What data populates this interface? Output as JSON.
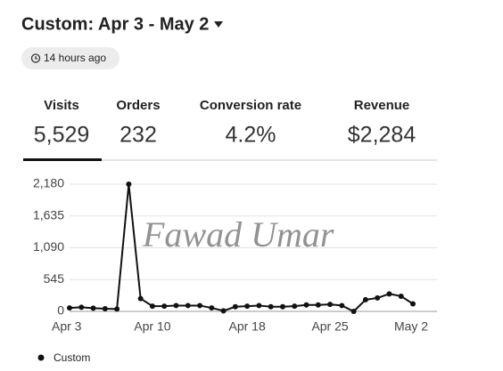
{
  "header": {
    "title": "Custom: Apr 3 - May 2",
    "updated": "14 hours ago"
  },
  "stats": [
    {
      "label": "Visits",
      "value": "5,529"
    },
    {
      "label": "Orders",
      "value": "232"
    },
    {
      "label": "Conversion rate",
      "value": "4.2%"
    },
    {
      "label": "Revenue",
      "value": "$2,284"
    }
  ],
  "watermark": "Fawad Umar",
  "chart_data": {
    "type": "line",
    "categories": [
      "Apr 3",
      null,
      null,
      null,
      null,
      null,
      null,
      "Apr 10",
      null,
      null,
      null,
      null,
      null,
      null,
      null,
      "Apr 18",
      null,
      null,
      null,
      null,
      null,
      null,
      "Apr 25",
      null,
      null,
      null,
      null,
      null,
      null,
      "May 2"
    ],
    "series": [
      {
        "name": "Custom",
        "color": "#111111",
        "values": [
          60,
          70,
          55,
          45,
          40,
          2180,
          220,
          90,
          90,
          100,
          100,
          100,
          60,
          10,
          80,
          90,
          100,
          80,
          80,
          90,
          110,
          110,
          120,
          100,
          0,
          200,
          230,
          300,
          260,
          130
        ]
      }
    ],
    "ylim": [
      0,
      2180
    ],
    "yticks": [
      0,
      {
        "value": 545,
        "label": "545"
      },
      {
        "value": 1090,
        "label": "1,090"
      },
      {
        "value": 1635,
        "label": "1,635"
      },
      {
        "value": 2180,
        "label": "2,180"
      }
    ],
    "grid": true
  }
}
